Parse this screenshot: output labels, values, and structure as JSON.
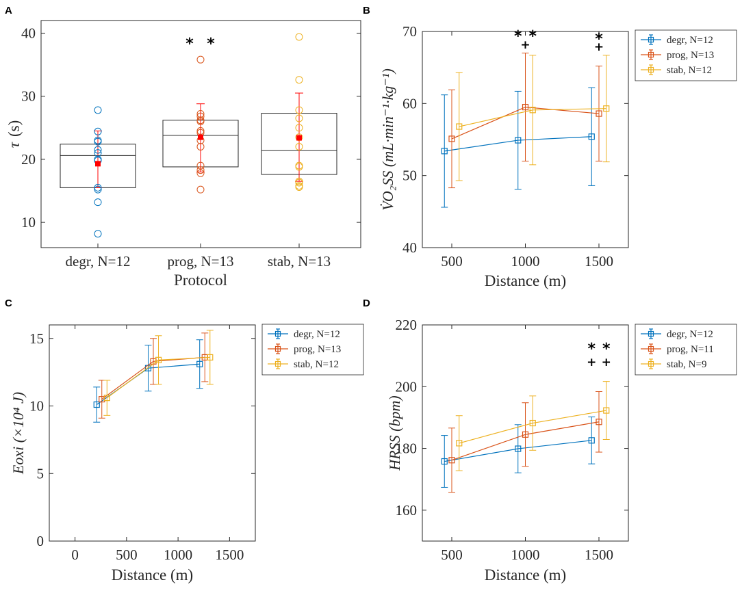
{
  "colors": {
    "degr": "#0072BD",
    "prog": "#D95319",
    "stab": "#EDB120",
    "mean_marker": "#FF0000",
    "axis": "#262626",
    "annotation": "#000000"
  },
  "panels": {
    "A": {
      "letter": "A",
      "ylabel_symbol": "τ",
      "ylabel_unit": "(s)",
      "xlabel": "Protocol",
      "categories": [
        "degr, N=12",
        "prog, N=13",
        "stab, N=13"
      ],
      "yticks": [
        "10",
        "20",
        "30",
        "40"
      ],
      "sig_marks": [
        "*",
        "*"
      ]
    },
    "B": {
      "letter": "B",
      "ylabel": "V̇O₂SS (mL·min⁻¹·kg⁻¹)",
      "xlabel": "Distance (m)",
      "xticks": [
        "500",
        "1000",
        "1500"
      ],
      "yticks": [
        "40",
        "50",
        "60",
        "70"
      ],
      "legend": [
        "degr, N=12",
        "prog, N=13",
        "stab, N=12"
      ],
      "sig_marks": [
        "*",
        "*",
        "+",
        "*",
        "+"
      ]
    },
    "C": {
      "letter": "C",
      "ylabel": "Eoxi (×10⁴ J)",
      "xlabel": "Distance (m)",
      "xticks": [
        "0",
        "500",
        "1000",
        "1500"
      ],
      "yticks": [
        "0",
        "5",
        "10",
        "15"
      ],
      "legend": [
        "degr, N=12",
        "prog, N=13",
        "stab, N=12"
      ]
    },
    "D": {
      "letter": "D",
      "ylabel": "HRSS (bpm)",
      "xlabel": "Distance (m)",
      "xticks": [
        "500",
        "1000",
        "1500"
      ],
      "yticks": [
        "160",
        "180",
        "200",
        "220"
      ],
      "legend": [
        "degr, N=12",
        "prog, N=11",
        "stab, N=9"
      ],
      "sig_marks": [
        "*",
        "*",
        "+",
        "+"
      ]
    }
  },
  "chart_data": [
    {
      "panel": "A",
      "type": "scatter",
      "subtype": "box-with-points",
      "xlabel": "Protocol",
      "ylabel": "τ (s)",
      "ylim": [
        6,
        42
      ],
      "categories": [
        "degr, N=12",
        "prog, N=13",
        "stab, N=13"
      ],
      "boxes": [
        {
          "name": "degr",
          "q1": 15.5,
          "median": 20.6,
          "q3": 22.4,
          "mean": 19.3,
          "sd_low": 15.5,
          "sd_high": 24.5
        },
        {
          "name": "prog",
          "q1": 18.8,
          "median": 23.8,
          "q3": 26.2,
          "mean": 23.5,
          "sd_low": 18.0,
          "sd_high": 28.8
        },
        {
          "name": "stab",
          "q1": 17.6,
          "median": 21.4,
          "q3": 27.3,
          "mean": 23.4,
          "sd_low": 16.5,
          "sd_high": 30.5
        }
      ],
      "points": [
        [
          27.8,
          24.4,
          22.8,
          21.0,
          20.0,
          19.8,
          15.5,
          15.2,
          13.2,
          8.2,
          23.0,
          21.5
        ],
        [
          35.8,
          27.2,
          26.8,
          26.2,
          24.5,
          23.0,
          22.0,
          19.0,
          18.3,
          17.8,
          15.2,
          24.2,
          26.0
        ],
        [
          39.4,
          32.6,
          27.8,
          26.5,
          25.0,
          23.5,
          19.0,
          18.8,
          16.5,
          16.3,
          15.8,
          15.6,
          22.0
        ]
      ],
      "annotations": [
        {
          "text": "*",
          "category": "prog",
          "y": 38.7
        },
        {
          "text": "*",
          "category": "prog",
          "y": 38.7
        }
      ]
    },
    {
      "panel": "B",
      "type": "line",
      "subtype": "errorbar",
      "xlabel": "Distance (m)",
      "ylabel": "V̇O₂SS (mL·min⁻¹·kg⁻¹)",
      "xlim": [
        300,
        1700
      ],
      "ylim": [
        40,
        70
      ],
      "series": [
        {
          "name": "degr, N=12",
          "x": [
            450,
            950,
            1450
          ],
          "values": [
            53.4,
            54.9,
            55.4
          ],
          "err": [
            7.8,
            6.8,
            6.8
          ]
        },
        {
          "name": "prog, N=13",
          "x": [
            500,
            1000,
            1500
          ],
          "values": [
            55.1,
            59.5,
            58.6
          ],
          "err": [
            6.8,
            7.5,
            6.6
          ]
        },
        {
          "name": "stab, N=12",
          "x": [
            550,
            1050,
            1550
          ],
          "values": [
            56.8,
            59.1,
            59.3
          ],
          "err": [
            7.5,
            7.6,
            7.4
          ]
        }
      ],
      "annotations": [
        {
          "text": "*",
          "x": 950,
          "y": 69.0
        },
        {
          "text": "*",
          "x": 1050,
          "y": 69.0
        },
        {
          "text": "+",
          "x": 1000,
          "y": 68.0
        },
        {
          "text": "*",
          "x": 1500,
          "y": 68.7
        },
        {
          "text": "+",
          "x": 1500,
          "y": 67.6
        }
      ]
    },
    {
      "panel": "C",
      "type": "line",
      "subtype": "errorbar",
      "xlabel": "Distance (m)",
      "ylabel": "Eoxi (×10⁴ J)",
      "xlim": [
        -250,
        1750
      ],
      "ylim": [
        0,
        16
      ],
      "series": [
        {
          "name": "degr, N=12",
          "x": [
            210,
            710,
            1210
          ],
          "values": [
            10.1,
            12.8,
            13.1
          ],
          "err": [
            1.3,
            1.7,
            1.8
          ]
        },
        {
          "name": "prog, N=13",
          "x": [
            260,
            760,
            1260
          ],
          "values": [
            10.5,
            13.3,
            13.6
          ],
          "err": [
            1.4,
            1.7,
            1.8
          ]
        },
        {
          "name": "stab, N=12",
          "x": [
            310,
            810,
            1310
          ],
          "values": [
            10.6,
            13.4,
            13.6
          ],
          "err": [
            1.3,
            1.8,
            2.0
          ]
        }
      ]
    },
    {
      "panel": "D",
      "type": "line",
      "subtype": "errorbar",
      "xlabel": "Distance (m)",
      "ylabel": "HRSS (bpm)",
      "xlim": [
        300,
        1700
      ],
      "ylim": [
        150,
        220
      ],
      "series": [
        {
          "name": "degr, N=12",
          "x": [
            450,
            950,
            1450
          ],
          "values": [
            175.8,
            179.9,
            182.6
          ],
          "err": [
            8.4,
            7.8,
            7.6
          ]
        },
        {
          "name": "prog, N=11",
          "x": [
            500,
            1000,
            1500
          ],
          "values": [
            176.2,
            184.5,
            188.6
          ],
          "err": [
            10.4,
            10.3,
            9.8
          ]
        },
        {
          "name": "stab, N=9",
          "x": [
            550,
            1050,
            1550
          ],
          "values": [
            181.7,
            188.2,
            192.3
          ],
          "err": [
            8.9,
            8.8,
            9.4
          ]
        }
      ],
      "annotations": [
        {
          "text": "*",
          "x": 1450,
          "y": 211.0
        },
        {
          "text": "*",
          "x": 1550,
          "y": 211.0
        },
        {
          "text": "+",
          "x": 1450,
          "y": 207.0
        },
        {
          "text": "+",
          "x": 1550,
          "y": 207.0
        }
      ]
    }
  ]
}
